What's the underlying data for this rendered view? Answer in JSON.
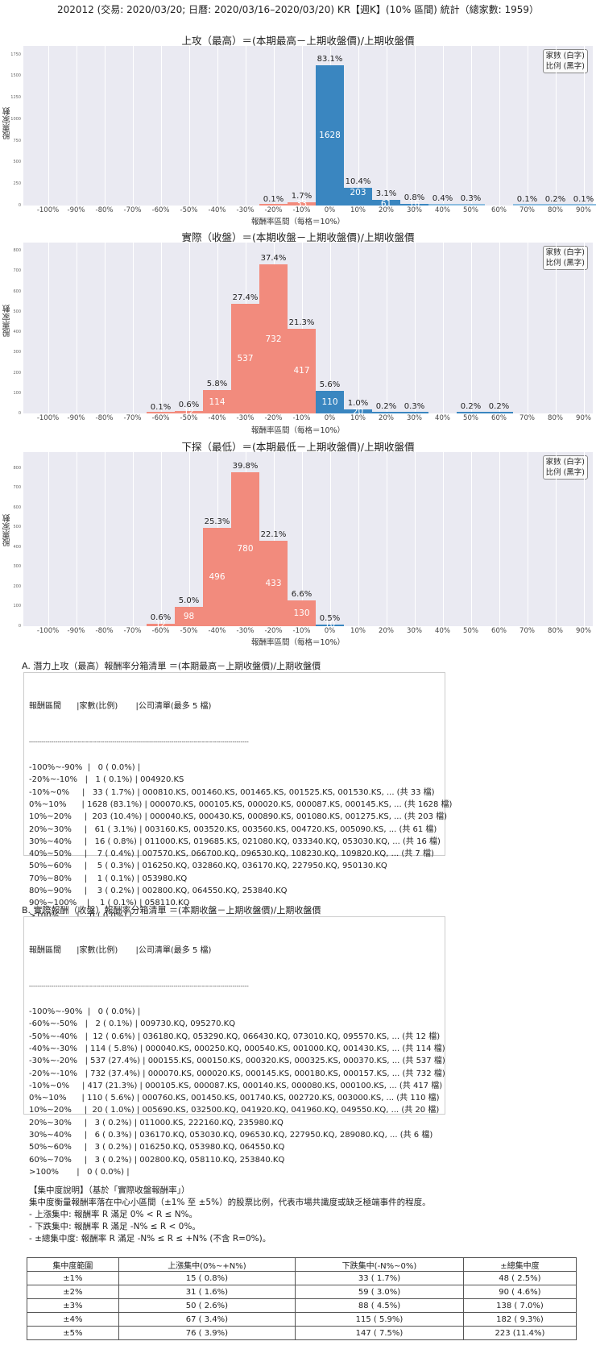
{
  "header": {
    "title": "202012 (交易: 2020/03/20; 日曆: 2020/03/16–2020/03/20) KR【週K】(10% 區間) 統計（總家數: 1959）"
  },
  "legend": {
    "line1": "家數 (白字)",
    "line2": "比例 (黑字)"
  },
  "colors": {
    "negative": "#f28b7d",
    "positive": "#3a86c0",
    "background": "#eaeaf2"
  },
  "chart_data": [
    {
      "type": "bar",
      "title": "上攻（最高）＝(本期最高－上期收盤價)/上期收盤價",
      "xlabel": "報酬率區間（每格＝10%）",
      "ylabel": "股票家數",
      "categories": [
        "-100%",
        "-90%",
        "-80%",
        "-70%",
        "-60%",
        "-50%",
        "-40%",
        "-30%",
        "-20%",
        "-10%",
        "0%",
        "10%",
        "20%",
        "30%",
        "40%",
        "50%",
        "60%",
        "70%",
        "80%",
        "90%",
        ">100%"
      ],
      "values": [
        0,
        0,
        0,
        0,
        0,
        0,
        0,
        0,
        1,
        33,
        1628,
        203,
        61,
        16,
        7,
        5,
        0,
        1,
        3,
        1,
        0
      ],
      "pct_labels": [
        "",
        "",
        "",
        "",
        "",
        "",
        "",
        "",
        "0.1%",
        "1.7%",
        "83.1%",
        "10.4%",
        "3.1%",
        "0.8%",
        "0.4%",
        "0.3%",
        "",
        "0.1%",
        "0.2%",
        "0.1%",
        ""
      ],
      "count_labels": [
        "",
        "",
        "",
        "",
        "",
        "",
        "",
        "",
        "",
        "33",
        "1628",
        "203",
        "61",
        "16",
        "",
        "",
        "",
        "",
        "",
        "",
        ""
      ],
      "yticks": [
        "0",
        "250",
        "500",
        "750",
        "1000",
        "1250",
        "1500",
        "1750"
      ],
      "ylim": [
        0,
        1850
      ]
    },
    {
      "type": "bar",
      "title": "實際（收盤）＝(本期收盤－上期收盤價)/上期收盤價",
      "xlabel": "報酬率區間（每格＝10%）",
      "ylabel": "股票家數",
      "categories": [
        "-100%",
        "-90%",
        "-80%",
        "-70%",
        "-60%",
        "-50%",
        "-40%",
        "-30%",
        "-20%",
        "-10%",
        "0%",
        "10%",
        "20%",
        "30%",
        "40%",
        "50%",
        "60%",
        "70%",
        "80%",
        "90%",
        ">100%"
      ],
      "values": [
        0,
        0,
        0,
        0,
        2,
        12,
        114,
        537,
        732,
        417,
        110,
        20,
        3,
        6,
        0,
        3,
        3,
        0,
        0,
        0,
        0
      ],
      "pct_labels": [
        "",
        "",
        "",
        "",
        "0.1%",
        "0.6%",
        "5.8%",
        "27.4%",
        "37.4%",
        "21.3%",
        "5.6%",
        "1.0%",
        "0.2%",
        "0.3%",
        "",
        "0.2%",
        "0.2%",
        "",
        "",
        "",
        ""
      ],
      "count_labels": [
        "",
        "",
        "",
        "",
        "",
        "12",
        "114",
        "537",
        "732",
        "417",
        "110",
        "20",
        "",
        "",
        "",
        "",
        "",
        "",
        "",
        "",
        ""
      ],
      "yticks": [
        "0",
        "100",
        "200",
        "300",
        "400",
        "500",
        "600",
        "700",
        "800"
      ],
      "ylim": [
        0,
        840
      ]
    },
    {
      "type": "bar",
      "title": "下探（最低）＝(本期最低－上期收盤價)/上期收盤價",
      "xlabel": "報酬率區間（每格＝10%）",
      "ylabel": "股票家數",
      "categories": [
        "-100%",
        "-90%",
        "-80%",
        "-70%",
        "-60%",
        "-50%",
        "-40%",
        "-30%",
        "-20%",
        "-10%",
        "0%",
        "10%",
        "20%",
        "30%",
        "40%",
        "50%",
        "60%",
        "70%",
        "80%",
        "90%",
        ">100%"
      ],
      "values": [
        0,
        0,
        0,
        0,
        12,
        98,
        496,
        780,
        433,
        130,
        10,
        0,
        0,
        0,
        0,
        0,
        0,
        0,
        0,
        0,
        0
      ],
      "pct_labels": [
        "",
        "",
        "",
        "",
        "0.6%",
        "5.0%",
        "25.3%",
        "39.8%",
        "22.1%",
        "6.6%",
        "0.5%",
        "",
        "",
        "",
        "",
        "",
        "",
        "",
        "",
        "",
        ""
      ],
      "count_labels": [
        "",
        "",
        "",
        "",
        "12",
        "98",
        "496",
        "780",
        "433",
        "130",
        "10",
        "",
        "",
        "",
        "",
        "",
        "",
        "",
        "",
        "",
        ""
      ],
      "yticks": [
        "0",
        "100",
        "200",
        "300",
        "400",
        "500",
        "600",
        "700",
        "800"
      ],
      "ylim": [
        0,
        880
      ]
    }
  ],
  "section_a": {
    "title": "A. 潛力上攻（最高）報酬率分箱清單 ＝(本期最高－上期收盤價)/上期收盤價",
    "header": "報酬區間      |家數(比例)       |公司清單(最多 5 檔)",
    "divider": "------------------------------------------------------------------------------------------------------------",
    "rows": [
      "-100%~-90%  |   0 ( 0.0%) |",
      "-20%~-10%   |   1 ( 0.1%) | 004920.KS",
      "-10%~0%     |   33 ( 1.7%) | 000810.KS, 001460.KS, 001465.KS, 001525.KS, 001530.KS, ... (共 33 檔)",
      "0%~10%      | 1628 (83.1%) | 000070.KS, 000105.KS, 000020.KS, 000087.KS, 000145.KS, ... (共 1628 檔)",
      "10%~20%     |  203 (10.4%) | 000040.KS, 000430.KS, 000890.KS, 001080.KS, 001275.KS, ... (共 203 檔)",
      "20%~30%     |   61 ( 3.1%) | 003160.KS, 003520.KS, 003560.KS, 004720.KS, 005090.KS, ... (共 61 檔)",
      "30%~40%     |   16 ( 0.8%) | 011000.KS, 019685.KS, 021080.KQ, 033340.KQ, 053030.KQ, ... (共 16 檔)",
      "40%~50%     |    7 ( 0.4%) | 007570.KS, 066700.KQ, 096530.KQ, 108230.KQ, 109820.KQ, ... (共 7 檔)",
      "50%~60%     |    5 ( 0.3%) | 016250.KQ, 032860.KQ, 036170.KQ, 227950.KQ, 950130.KQ",
      "70%~80%     |    1 ( 0.1%) | 053980.KQ",
      "80%~90%     |    3 ( 0.2%) | 002800.KQ, 064550.KQ, 253840.KQ",
      "90%~100%    |    1 ( 0.1%) | 058110.KQ",
      ">100%       |    0 ( 0.0%) |"
    ]
  },
  "section_b": {
    "title": "B. 實際報酬（收盤）報酬率分箱清單 ＝(本期收盤－上期收盤價)/上期收盤價",
    "header": "報酬區間      |家數(比例)       |公司清單(最多 5 檔)",
    "divider": "------------------------------------------------------------------------------------------------------------",
    "rows": [
      "-100%~-90%  |   0 ( 0.0%) |",
      "-60%~-50%   |   2 ( 0.1%) | 009730.KQ, 095270.KQ",
      "-50%~-40%   |  12 ( 0.6%) | 036180.KQ, 053290.KQ, 066430.KQ, 073010.KQ, 095570.KS, ... (共 12 檔)",
      "-40%~-30%   | 114 ( 5.8%) | 000040.KS, 000250.KQ, 000540.KS, 001000.KQ, 001430.KS, ... (共 114 檔)",
      "-30%~-20%   | 537 (27.4%) | 000155.KS, 000150.KS, 000320.KS, 000325.KS, 000370.KS, ... (共 537 檔)",
      "-20%~-10%   | 732 (37.4%) | 000070.KS, 000020.KS, 000145.KS, 000180.KS, 000157.KS, ... (共 732 檔)",
      "-10%~0%     | 417 (21.3%) | 000105.KS, 000087.KS, 000140.KS, 000080.KS, 000100.KS, ... (共 417 檔)",
      "0%~10%      | 110 ( 5.6%) | 000760.KS, 001450.KS, 001740.KS, 002720.KS, 003000.KS, ... (共 110 檔)",
      "10%~20%     |  20 ( 1.0%) | 005690.KS, 032500.KQ, 041920.KQ, 041960.KQ, 049550.KQ, ... (共 20 檔)",
      "20%~30%     |   3 ( 0.2%) | 011000.KS, 222160.KQ, 235980.KQ",
      "30%~40%     |   6 ( 0.3%) | 036170.KQ, 053030.KQ, 096530.KQ, 227950.KQ, 289080.KQ, ... (共 6 檔)",
      "50%~60%     |   3 ( 0.2%) | 016250.KQ, 053980.KQ, 064550.KQ",
      "60%~70%     |   3 ( 0.2%) | 002800.KQ, 058110.KQ, 253840.KQ",
      ">100%       |   0 ( 0.0%) |"
    ]
  },
  "concentration": {
    "heading": "【集中度說明】（基於「實際收盤報酬率」）",
    "description": "集中度衡量報酬率落在中心小區間（±1% 至 ±5%）的股票比例，代表市場共識度或缺乏極端事件的程度。",
    "bullets": [
      " - 上漲集中: 報酬率 R 滿足 0% < R ≤ N%。",
      " - 下跌集中: 報酬率 R 滿足 -N% ≤ R < 0%。",
      " - ±總集中度: 報酬率 R 滿足 -N% ≤ R ≤ +N% (不含 R=0%)。"
    ],
    "table": {
      "headers": [
        "集中度範圍",
        "上漲集中(0%~+N%)",
        "下跌集中(-N%~0%)",
        "±總集中度"
      ],
      "rows": [
        [
          "±1%",
          "15 ( 0.8%)",
          "33 ( 1.7%)",
          "48 ( 2.5%)"
        ],
        [
          "±2%",
          "31 ( 1.6%)",
          "59 ( 3.0%)",
          "90 ( 4.6%)"
        ],
        [
          "±3%",
          "50 ( 2.6%)",
          "88 ( 4.5%)",
          "138 ( 7.0%)"
        ],
        [
          "±4%",
          "67 ( 3.4%)",
          "115 ( 5.9%)",
          "182 ( 9.3%)"
        ],
        [
          "±5%",
          "76 ( 3.9%)",
          "147 ( 7.5%)",
          "223 (11.4%)"
        ]
      ]
    }
  }
}
